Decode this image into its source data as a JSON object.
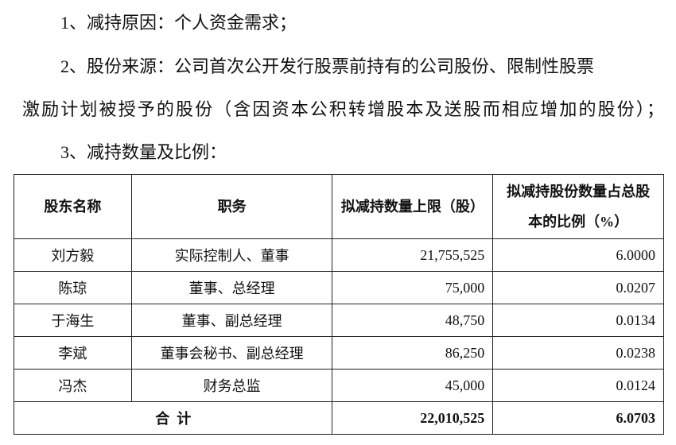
{
  "paragraphs": {
    "reason": "1、减持原因：个人资金需求；",
    "source_line1": "2、股份来源：公司首次公开发行股票前持有的公司股份、限制性股票",
    "source_line2": "激励计划被授予的股份（含因资本公积转增股本及送股而相应增加的股份）；",
    "quantity_heading": "3、减持数量及比例："
  },
  "table": {
    "headers": [
      "股东名称",
      "职务",
      "拟减持数量上限（股）",
      "拟减持股份数量占总股本的比例（%）"
    ],
    "rows": [
      {
        "name": "刘方毅",
        "position": "实际控制人、董事",
        "shares": "21,755,525",
        "ratio": "6.0000"
      },
      {
        "name": "陈琼",
        "position": "董事、总经理",
        "shares": "75,000",
        "ratio": "0.0207"
      },
      {
        "name": "于海生",
        "position": "董事、副总经理",
        "shares": "48,750",
        "ratio": "0.0134"
      },
      {
        "name": "李斌",
        "position": "董事会秘书、副总经理",
        "shares": "86,250",
        "ratio": "0.0238"
      },
      {
        "name": "冯杰",
        "position": "财务总监",
        "shares": "45,000",
        "ratio": "0.0124"
      }
    ],
    "total": {
      "label": "合  计",
      "shares": "22,010,525",
      "ratio": "6.0703"
    }
  }
}
